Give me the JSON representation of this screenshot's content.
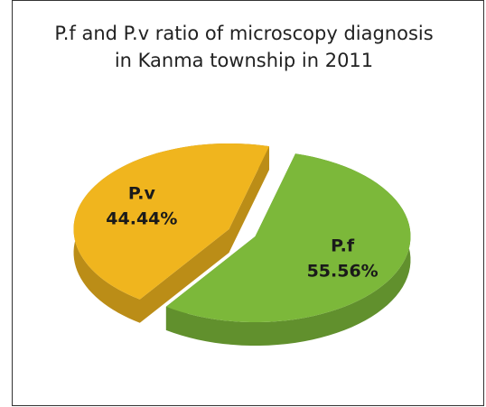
{
  "chart_data": {
    "type": "pie",
    "title": "P.f and P.v ratio of microscopy diagnosis in Kanma township in 2011",
    "categories": [
      "P.f",
      "P.v"
    ],
    "values": [
      55.56,
      44.44
    ],
    "value_labels": [
      "55.56%",
      "44.44%"
    ],
    "colors": [
      "#7cb83a",
      "#f0b51e"
    ]
  }
}
